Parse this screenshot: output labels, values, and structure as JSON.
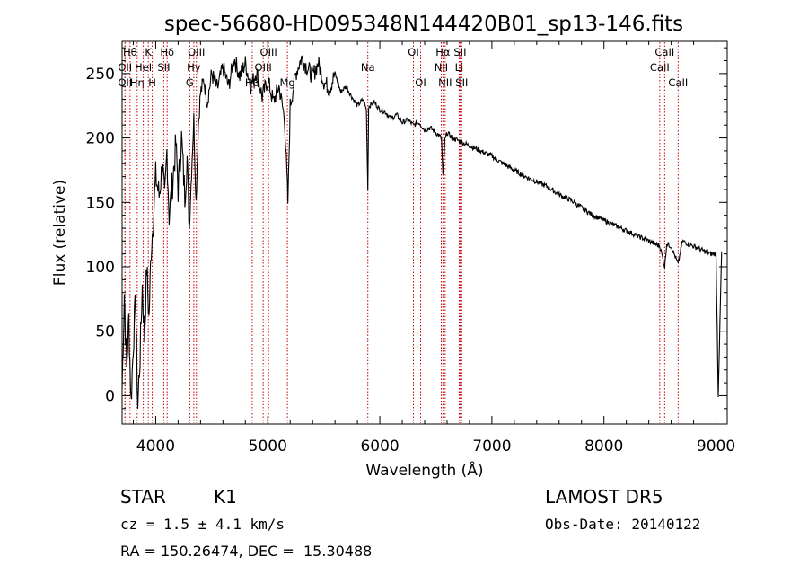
{
  "chart_data": {
    "type": "line",
    "title": "spec-56680-HD095348N144420B01_sp13-146.fits",
    "xlabel": "Wavelength (Å)",
    "ylabel": "Flux (relative)",
    "xlim": [
      3700,
      9100
    ],
    "ylim": [
      -22,
      275
    ],
    "xticks": [
      4000,
      5000,
      6000,
      7000,
      8000,
      9000
    ],
    "yticks": [
      0,
      50,
      100,
      150,
      200,
      250
    ],
    "line_color": "#000000",
    "marker_color": "#cc0000",
    "grid": false,
    "series": [
      {
        "x": [
          3700,
          3720,
          3740,
          3760,
          3780,
          3800,
          3820,
          3840,
          3860,
          3880,
          3900,
          3920,
          3940,
          3960,
          3980,
          4000,
          4030,
          4060,
          4080,
          4100,
          4120,
          4150,
          4180,
          4200,
          4230,
          4260,
          4280,
          4300,
          4320,
          4340,
          4360,
          4380,
          4400,
          4430,
          4460,
          4500,
          4550,
          4600,
          4650,
          4700,
          4750,
          4800,
          4850,
          4900,
          4950,
          5000,
          5050,
          5100,
          5150,
          5180,
          5200,
          5250,
          5300,
          5350,
          5400,
          5450,
          5500,
          5550,
          5600,
          5650,
          5700,
          5750,
          5800,
          5850,
          5880,
          5893,
          5900,
          5920,
          5950,
          6000,
          6050,
          6100,
          6150,
          6200,
          6250,
          6300,
          6350,
          6400,
          6450,
          6500,
          6550,
          6563,
          6580,
          6600,
          6650,
          6700,
          6750,
          6800,
          6900,
          7000,
          7100,
          7200,
          7300,
          7400,
          7500,
          7600,
          7700,
          7800,
          7900,
          8000,
          8100,
          8200,
          8300,
          8400,
          8450,
          8500,
          8542,
          8560,
          8600,
          8662,
          8700,
          8750,
          8800,
          8850,
          8900,
          8950,
          9000,
          9020,
          9050
        ],
        "y": [
          5,
          80,
          20,
          60,
          -5,
          40,
          75,
          -8,
          30,
          85,
          45,
          100,
          60,
          115,
          140,
          170,
          155,
          180,
          150,
          190,
          140,
          165,
          195,
          160,
          200,
          155,
          185,
          130,
          175,
          215,
          150,
          210,
          235,
          245,
          228,
          250,
          238,
          255,
          240,
          262,
          248,
          258,
          240,
          252,
          232,
          245,
          228,
          240,
          215,
          150,
          225,
          250,
          262,
          255,
          248,
          258,
          244,
          238,
          250,
          236,
          240,
          232,
          225,
          230,
          222,
          160,
          224,
          226,
          228,
          222,
          220,
          215,
          218,
          212,
          214,
          210,
          212,
          206,
          208,
          204,
          200,
          170,
          198,
          204,
          200,
          198,
          196,
          194,
          190,
          186,
          180,
          175,
          170,
          166,
          162,
          156,
          152,
          146,
          140,
          136,
          132,
          128,
          124,
          120,
          118,
          116,
          100,
          118,
          116,
          102,
          120,
          118,
          116,
          114,
          112,
          110,
          110,
          0,
          112
        ]
      }
    ],
    "line_markers": [
      {
        "x": 3771,
        "label": "Hθ",
        "row": 0
      },
      {
        "x": 3726,
        "label": "OII",
        "row": 1
      },
      {
        "x": 3726,
        "label": "OII",
        "row": 2
      },
      {
        "x": 3835,
        "label": "Hη",
        "row": 2
      },
      {
        "x": 3889,
        "label": "HeI",
        "row": 1
      },
      {
        "x": 3934,
        "label": "K",
        "row": 0
      },
      {
        "x": 3969,
        "label": "H",
        "row": 2
      },
      {
        "x": 4072,
        "label": "SII",
        "row": 1
      },
      {
        "x": 4102,
        "label": "Hδ",
        "row": 0
      },
      {
        "x": 4304,
        "label": "G",
        "row": 2
      },
      {
        "x": 4340,
        "label": "Hγ",
        "row": 1
      },
      {
        "x": 4363,
        "label": "OIII",
        "row": 0
      },
      {
        "x": 4861,
        "label": "Hβ",
        "row": 2
      },
      {
        "x": 4959,
        "label": "OIII",
        "row": 1
      },
      {
        "x": 5007,
        "label": "OIII",
        "row": 0
      },
      {
        "x": 5175,
        "label": "Mg",
        "row": 2
      },
      {
        "x": 5893,
        "label": "Na",
        "row": 1
      },
      {
        "x": 6300,
        "label": "OI",
        "row": 0
      },
      {
        "x": 6364,
        "label": "OI",
        "row": 2
      },
      {
        "x": 6548,
        "label": "NII",
        "row": 1
      },
      {
        "x": 6563,
        "label": "Hα",
        "row": 0
      },
      {
        "x": 6583,
        "label": "NII",
        "row": 2
      },
      {
        "x": 6708,
        "label": "Li",
        "row": 1
      },
      {
        "x": 6716,
        "label": "SII",
        "row": 0
      },
      {
        "x": 6731,
        "label": "SII",
        "row": 2
      },
      {
        "x": 8498,
        "label": "CaII",
        "row": 1
      },
      {
        "x": 8542,
        "label": "CaII",
        "row": 0
      },
      {
        "x": 8662,
        "label": "CaII",
        "row": 2
      }
    ]
  },
  "info": {
    "object_class": "STAR",
    "subclass": "K1",
    "survey": "LAMOST DR5",
    "redshift": "cz = 1.5 ± 4.1 km/s",
    "obs_date": "Obs-Date: 20140122",
    "coords": "RA = 150.26474, DEC =  15.30488"
  }
}
